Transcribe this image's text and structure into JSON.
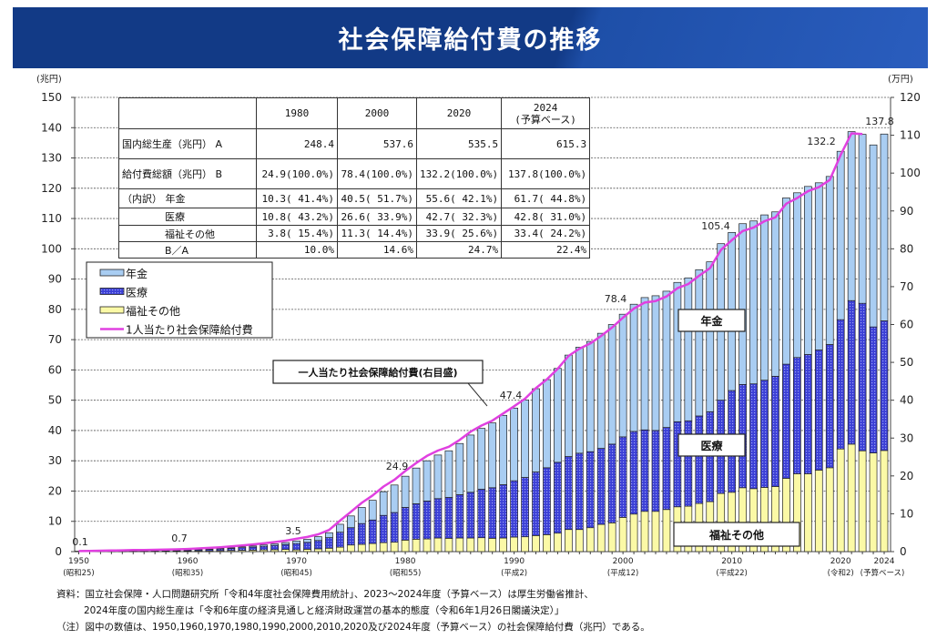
{
  "title": "社会保障給付費の推移",
  "chart_data": {
    "type": "bar",
    "stacked": true,
    "title": "社会保障給付費の推移",
    "ylabel_left": "(兆円)",
    "ylabel_right": "(万円)",
    "ylim_left": [
      0,
      150
    ],
    "ylim_right": [
      0,
      120
    ],
    "yticks_left": [
      0,
      10,
      20,
      30,
      40,
      50,
      60,
      70,
      80,
      90,
      100,
      110,
      120,
      130,
      140,
      150
    ],
    "yticks_right": [
      0,
      10,
      20,
      30,
      40,
      50,
      60,
      70,
      80,
      90,
      100,
      110,
      120
    ],
    "grid": true,
    "legend_placement": "upper-left",
    "x_start_year": 1950,
    "x_end_year": 2024,
    "x_tick_labels": [
      {
        "year": 1950,
        "label": "1950",
        "sub": "(昭和25)"
      },
      {
        "year": 1960,
        "label": "1960",
        "sub": "(昭和35)"
      },
      {
        "year": 1970,
        "label": "1970",
        "sub": "(昭和45)"
      },
      {
        "year": 1980,
        "label": "1980",
        "sub": "(昭和55)"
      },
      {
        "year": 1990,
        "label": "1990",
        "sub": "(平成2)"
      },
      {
        "year": 2000,
        "label": "2000",
        "sub": "(平成12)"
      },
      {
        "year": 2010,
        "label": "2010",
        "sub": "(平成22)"
      },
      {
        "year": 2020,
        "label": "2020",
        "sub": "(令和2)"
      },
      {
        "year": 2024,
        "label": "2024",
        "sub": "(予算ベース)"
      }
    ],
    "colors": {
      "pension": "#a9cdf2",
      "medical": "#3b3fd6",
      "welfare": "#fbf9a6",
      "per_capita": "#e040e0"
    },
    "series": [
      {
        "name": "年金",
        "key": "pension",
        "values": [
          0.0,
          0.01,
          0.01,
          0.02,
          0.02,
          0.02,
          0.03,
          0.04,
          0.06,
          0.09,
          0.15,
          0.17,
          0.19,
          0.22,
          0.25,
          0.3,
          0.36,
          0.43,
          0.51,
          0.63,
          0.86,
          1.02,
          1.26,
          1.61,
          2.62,
          3.87,
          5.32,
          6.49,
          7.83,
          9.09,
          10.3,
          11.8,
          13.3,
          14.4,
          15.4,
          16.9,
          18.9,
          20.1,
          21.4,
          22.9,
          24.0,
          25.6,
          27.5,
          29.1,
          31.0,
          33.5,
          35.0,
          36.4,
          38.0,
          39.5,
          40.5,
          42.0,
          43.7,
          44.5,
          45.0,
          46.0,
          47.2,
          48.3,
          49.5,
          51.7,
          52.2,
          53.1,
          53.8,
          54.6,
          54.3,
          54.9,
          54.4,
          55.5,
          55.2,
          55.5,
          55.6,
          55.8,
          55.8,
          60.1,
          61.7
        ]
      },
      {
        "name": "医療",
        "key": "medical",
        "values": [
          0.06,
          0.08,
          0.1,
          0.13,
          0.16,
          0.21,
          0.22,
          0.23,
          0.26,
          0.28,
          0.29,
          0.37,
          0.47,
          0.58,
          0.72,
          0.88,
          1.03,
          1.21,
          1.41,
          1.61,
          2.06,
          2.27,
          2.75,
          3.51,
          4.95,
          5.72,
          6.85,
          7.77,
          8.99,
          9.79,
          10.8,
          11.7,
          12.5,
          13.0,
          13.5,
          14.3,
          15.1,
          16.0,
          16.7,
          17.6,
          18.6,
          19.6,
          21.0,
          22.1,
          23.4,
          24.1,
          25.2,
          25.1,
          25.1,
          26.0,
          26.6,
          27.3,
          26.9,
          26.7,
          27.1,
          28.1,
          28.2,
          28.9,
          29.7,
          30.8,
          33.6,
          34.1,
          34.6,
          35.4,
          36.4,
          37.7,
          38.4,
          39.4,
          39.7,
          40.7,
          42.7,
          47.4,
          48.7,
          41.6,
          42.8
        ]
      },
      {
        "name": "福祉その他",
        "key": "welfare",
        "values": [
          0.07,
          0.07,
          0.09,
          0.11,
          0.12,
          0.16,
          0.15,
          0.16,
          0.18,
          0.19,
          0.21,
          0.25,
          0.28,
          0.32,
          0.37,
          0.42,
          0.49,
          0.56,
          0.64,
          0.72,
          0.6,
          0.78,
          0.92,
          1.12,
          1.46,
          2.19,
          2.41,
          2.68,
          2.97,
          3.12,
          3.8,
          4.1,
          4.2,
          4.5,
          4.4,
          4.5,
          4.5,
          4.6,
          4.4,
          4.5,
          4.8,
          4.9,
          5.3,
          5.6,
          6.1,
          7.3,
          7.3,
          7.9,
          9.0,
          9.5,
          11.3,
          12.4,
          13.3,
          13.3,
          13.9,
          14.8,
          15.0,
          15.9,
          16.5,
          19.2,
          19.6,
          21.1,
          20.8,
          21.2,
          21.5,
          24.2,
          25.7,
          25.7,
          26.9,
          27.7,
          33.9,
          35.5,
          33.3,
          32.6,
          33.4
        ]
      },
      {
        "name": "1人当たり社会保障給付費",
        "key": "per_capita",
        "axis": "right",
        "type": "line",
        "values": [
          0.15,
          0.19,
          0.23,
          0.3,
          0.34,
          0.44,
          0.44,
          0.47,
          0.54,
          0.6,
          0.69,
          0.84,
          0.99,
          1.16,
          1.38,
          1.63,
          1.9,
          2.2,
          2.53,
          2.89,
          3.39,
          3.87,
          4.58,
          5.72,
          8.17,
          10.52,
          12.89,
          14.84,
          17.19,
          18.97,
          21.3,
          23.4,
          25.3,
          26.7,
          27.7,
          29.5,
          31.7,
          33.3,
          34.6,
          36.5,
          38.4,
          40.4,
          43.2,
          45.5,
          48.3,
          51.7,
          53.6,
          55.0,
          57.0,
          59.2,
          61.8,
          64.2,
          65.8,
          66.2,
          67.4,
          69.6,
          70.7,
          72.9,
          74.9,
          79.7,
          82.3,
          84.7,
          85.6,
          87.3,
          88.3,
          91.9,
          93.4,
          95.2,
          96.3,
          98.2,
          104.8,
          110.5,
          110.3
        ]
      }
    ],
    "data_labels": [
      {
        "year": 1950,
        "text": "0.1"
      },
      {
        "year": 1960,
        "text": "0.7"
      },
      {
        "year": 1970,
        "text": "3.5"
      },
      {
        "year": 1980,
        "text": "24.9"
      },
      {
        "year": 1990,
        "text": "47.4"
      },
      {
        "year": 2000,
        "text": "78.4"
      },
      {
        "year": 2010,
        "text": "105.4"
      },
      {
        "year": 2020,
        "text": "132.2"
      },
      {
        "year": 2024,
        "text": "137.8"
      }
    ],
    "annotations": {
      "callout": "一人当たり社会保障給付費(右目盛)",
      "pension": "年金",
      "medical": "医療",
      "welfare": "福祉その他"
    },
    "legend": [
      "年金",
      "医療",
      "福祉その他",
      "1人当たり社会保障給付費"
    ]
  },
  "table": {
    "headers": [
      "",
      "1980",
      "2000",
      "2020",
      "2024",
      "(予算ベース)"
    ],
    "rows": [
      {
        "label": "国内総生産（兆円） A",
        "cells": [
          "248.4",
          "537.6",
          "535.5",
          "615.3"
        ]
      },
      {
        "label": "給付費総額（兆円） B",
        "cells": [
          "24.9(100.0%)",
          "78.4(100.0%)",
          "132.2(100.0%)",
          "137.8(100.0%)"
        ]
      },
      {
        "label": "（内訳） 年金",
        "cells": [
          "10.3( 41.4%)",
          "40.5( 51.7%)",
          "55.6( 42.1%)",
          "61.7( 44.8%)"
        ]
      },
      {
        "label": "医療",
        "cells": [
          "10.8( 43.2%)",
          "26.6( 33.9%)",
          "42.7( 32.3%)",
          "42.8( 31.0%)"
        ]
      },
      {
        "label": "福祉その他",
        "cells": [
          "3.8( 15.4%)",
          "11.3( 14.4%)",
          "33.9( 25.6%)",
          "33.4( 24.2%)"
        ]
      },
      {
        "label": "B／A",
        "cells": [
          "10.0%",
          "14.6%",
          "24.7%",
          "22.4%"
        ]
      }
    ]
  },
  "footer": {
    "line1": "資料：国立社会保障・人口問題研究所「令和4年度社会保障費用統計」、2023～2024年度（予算ベース）は厚生労働省推計、",
    "line2": "2024年度の国内総生産は「令和6年度の経済見通しと経済財政運営の基本的態度（令和6年1月26日閣議決定）」",
    "line3": "（注）図中の数値は、1950,1960,1970,1980,1990,2000,2010,2020及び2024年度（予算ベース）の社会保障給付費（兆円）である。"
  }
}
